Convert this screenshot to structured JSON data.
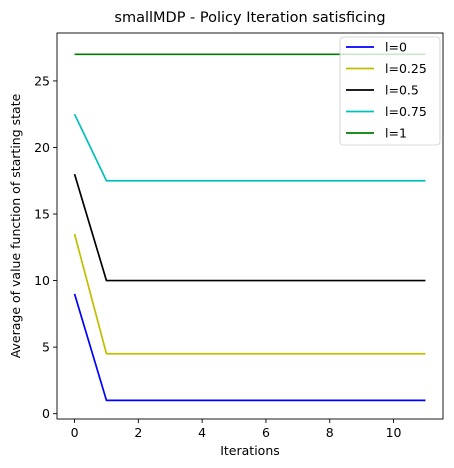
{
  "chart_data": {
    "type": "line",
    "title": "smallMDP - Policy Iteration satisficing",
    "xlabel": "Iterations",
    "ylabel": "Average of value function of starting state",
    "xlim": [
      -0.55,
      11.55
    ],
    "ylim": [
      -0.4,
      28.6
    ],
    "xticks": [
      0,
      2,
      4,
      6,
      8,
      10
    ],
    "yticks": [
      0,
      5,
      10,
      15,
      20,
      25
    ],
    "grid": false,
    "legend_position": "top-right",
    "x": [
      0,
      1,
      2,
      3,
      4,
      5,
      6,
      7,
      8,
      9,
      10,
      11
    ],
    "series": [
      {
        "name": "l=0",
        "color": "#0000ff",
        "values": [
          9,
          1,
          1,
          1,
          1,
          1,
          1,
          1,
          1,
          1,
          1,
          1
        ]
      },
      {
        "name": "l=0.25",
        "color": "#bfbf00",
        "values": [
          13.5,
          4.5,
          4.5,
          4.5,
          4.5,
          4.5,
          4.5,
          4.5,
          4.5,
          4.5,
          4.5,
          4.5
        ]
      },
      {
        "name": "l=0.5",
        "color": "#000000",
        "values": [
          18,
          10,
          10,
          10,
          10,
          10,
          10,
          10,
          10,
          10,
          10,
          10
        ]
      },
      {
        "name": "l=0.75",
        "color": "#00bfbf",
        "values": [
          22.5,
          17.5,
          17.5,
          17.5,
          17.5,
          17.5,
          17.5,
          17.5,
          17.5,
          17.5,
          17.5,
          17.5
        ]
      },
      {
        "name": "l=1",
        "color": "#008000",
        "values": [
          27,
          27,
          27,
          27,
          27,
          27,
          27,
          27,
          27,
          27,
          27,
          27
        ]
      }
    ]
  }
}
